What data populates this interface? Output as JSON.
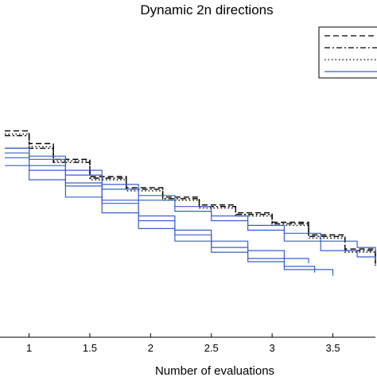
{
  "chart_data": {
    "type": "line",
    "title": "Dynamic 2n directions",
    "xlabel": "Number of evaluations",
    "ylabel": "",
    "xlim": [
      0.8,
      3.85
    ],
    "ylim": [
      0,
      1
    ],
    "x_ticks": [
      1,
      1.5,
      2,
      2.5,
      3,
      3.5
    ],
    "x_tick_labels": [
      "1",
      "1.5",
      "2",
      "2.5",
      "3",
      "3.5"
    ],
    "grid": false,
    "legend_position": "top-right",
    "legend_entries": [
      {
        "style": "dashed",
        "color": "#000000",
        "label": ""
      },
      {
        "style": "dash-dot",
        "color": "#000000",
        "label": ""
      },
      {
        "style": "dotted",
        "color": "#000000",
        "label": ""
      },
      {
        "style": "solid",
        "color": "#3a5fcd",
        "label": ""
      }
    ],
    "series": [
      {
        "style": "dashed",
        "color": "#000000",
        "x": [
          0.8,
          1.0,
          1.2,
          1.5,
          1.8,
          2.1,
          2.4,
          2.7,
          3.0,
          3.3,
          3.6,
          3.85
        ],
        "y": [
          0.655,
          0.615,
          0.565,
          0.51,
          0.475,
          0.445,
          0.42,
          0.395,
          0.365,
          0.325,
          0.28,
          0.235
        ]
      },
      {
        "style": "dash-dot",
        "color": "#000000",
        "x": [
          0.8,
          1.0,
          1.2,
          1.5,
          1.8,
          2.1,
          2.4,
          2.7,
          3.0,
          3.3,
          3.6,
          3.85
        ],
        "y": [
          0.64,
          0.6,
          0.555,
          0.505,
          0.47,
          0.44,
          0.415,
          0.39,
          0.36,
          0.32,
          0.275,
          0.23
        ]
      },
      {
        "style": "dotted",
        "color": "#000000",
        "x": [
          0.8,
          1.0,
          1.2,
          1.5,
          1.8,
          2.1,
          2.4,
          2.7,
          3.0,
          3.3,
          3.6,
          3.85
        ],
        "y": [
          0.645,
          0.605,
          0.56,
          0.5,
          0.465,
          0.435,
          0.41,
          0.385,
          0.355,
          0.315,
          0.27,
          0.225
        ]
      },
      {
        "style": "solid",
        "color": "#3a5fcd",
        "x": [
          0.8,
          1.0,
          1.3,
          1.6,
          1.9,
          2.2,
          2.5,
          2.8,
          3.1,
          3.4,
          3.7,
          3.85
        ],
        "y": [
          0.6,
          0.575,
          0.53,
          0.485,
          0.45,
          0.415,
          0.385,
          0.355,
          0.33,
          0.305,
          0.285,
          0.27
        ]
      },
      {
        "style": "solid",
        "color": "#3a5fcd",
        "x": [
          0.8,
          1.0,
          1.3,
          1.6,
          1.9,
          2.2,
          2.5,
          2.8,
          3.1,
          3.4,
          3.7,
          3.85
        ],
        "y": [
          0.6,
          0.565,
          0.515,
          0.47,
          0.435,
          0.4,
          0.37,
          0.34,
          0.305,
          0.275,
          0.255,
          0.245
        ]
      },
      {
        "style": "solid",
        "color": "#3a5fcd",
        "x": [
          0.8,
          1.0,
          1.3,
          1.6,
          1.9,
          2.2,
          2.5,
          2.8,
          3.1,
          3.3
        ],
        "y": [
          0.585,
          0.545,
          0.49,
          0.435,
          0.385,
          0.34,
          0.305,
          0.275,
          0.25,
          0.235
        ]
      },
      {
        "style": "solid",
        "color": "#3a5fcd",
        "x": [
          0.8,
          1.0,
          1.3,
          1.6,
          1.9,
          2.2,
          2.5,
          2.8,
          3.1,
          3.35
        ],
        "y": [
          0.57,
          0.53,
          0.48,
          0.425,
          0.37,
          0.325,
          0.285,
          0.25,
          0.225,
          0.205
        ]
      },
      {
        "style": "solid",
        "color": "#3a5fcd",
        "x": [
          0.8,
          1.0,
          1.3,
          1.6,
          1.9,
          2.2,
          2.5,
          2.8,
          3.1,
          3.5
        ],
        "y": [
          0.545,
          0.5,
          0.445,
          0.395,
          0.345,
          0.305,
          0.27,
          0.24,
          0.215,
          0.195
        ]
      }
    ]
  }
}
